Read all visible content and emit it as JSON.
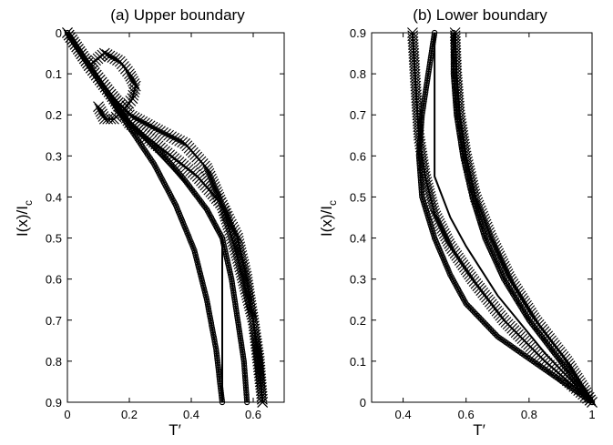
{
  "chart_data": [
    {
      "type": "line",
      "title": "(a) Upper boundary",
      "xlabel": "T′",
      "ylabel": "I(x)/I_c",
      "xlim": [
        0,
        0.7
      ],
      "ylim": [
        0,
        0.9
      ],
      "y_reversed": true,
      "xticks": [
        "0",
        "0.2",
        "0.4",
        "0.6"
      ],
      "yticks": [
        "0",
        "0.1",
        "0.2",
        "0.3",
        "0.4",
        "0.5",
        "0.6",
        "0.7",
        "0.8",
        "0.9"
      ],
      "grid": false,
      "series": [
        {
          "marker": "none",
          "x": [
            0,
            0.07,
            0.14,
            0.2,
            0.3,
            0.4,
            0.45,
            0.5,
            0.5,
            0.5
          ],
          "y": [
            0,
            0.08,
            0.16,
            0.22,
            0.3,
            0.38,
            0.43,
            0.5,
            0.7,
            0.9
          ]
        },
        {
          "marker": "circle",
          "x": [
            0,
            0.07,
            0.14,
            0.2,
            0.3,
            0.38,
            0.45,
            0.5,
            0.53,
            0.55,
            0.57,
            0.58
          ],
          "y": [
            0,
            0.08,
            0.16,
            0.22,
            0.29,
            0.36,
            0.43,
            0.5,
            0.6,
            0.7,
            0.8,
            0.9
          ]
        },
        {
          "marker": "x",
          "x": [
            0,
            0.07,
            0.14,
            0.2,
            0.3,
            0.42,
            0.5,
            0.55,
            0.58,
            0.6,
            0.62,
            0.63
          ],
          "y": [
            0,
            0.08,
            0.15,
            0.22,
            0.28,
            0.35,
            0.42,
            0.5,
            0.6,
            0.7,
            0.8,
            0.9
          ]
        },
        {
          "marker": "circle",
          "x": [
            0,
            0.07,
            0.14,
            0.2,
            0.28,
            0.35,
            0.41,
            0.45,
            0.48,
            0.5
          ],
          "y": [
            0,
            0.08,
            0.16,
            0.23,
            0.32,
            0.42,
            0.53,
            0.65,
            0.77,
            0.9
          ]
        },
        {
          "marker": "x",
          "x": [
            0,
            0.07,
            0.14,
            0.2,
            0.3,
            0.38,
            0.45,
            0.5,
            0.55,
            0.6,
            0.63
          ],
          "y": [
            0,
            0.08,
            0.15,
            0.2,
            0.24,
            0.27,
            0.33,
            0.42,
            0.55,
            0.7,
            0.9
          ]
        },
        {
          "marker": "x",
          "x": [
            0.07,
            0.12,
            0.17,
            0.2,
            0.22,
            0.21,
            0.18,
            0.15,
            0.12,
            0.1
          ],
          "y": [
            0.08,
            0.05,
            0.07,
            0.1,
            0.13,
            0.16,
            0.19,
            0.21,
            0.21,
            0.18
          ]
        }
      ]
    },
    {
      "type": "line",
      "title": "(b) Lower boundary",
      "xlabel": "T′",
      "ylabel": "I(x)/I_c",
      "xlim": [
        0.3,
        1
      ],
      "ylim": [
        0,
        0.9
      ],
      "y_reversed": false,
      "xticks": [
        "0.4",
        "0.6",
        "0.8",
        "1"
      ],
      "yticks": [
        "0",
        "0.1",
        "0.2",
        "0.3",
        "0.4",
        "0.5",
        "0.6",
        "0.7",
        "0.8",
        "0.9"
      ],
      "grid": false,
      "series": [
        {
          "marker": "none",
          "x": [
            1,
            0.85,
            0.7,
            0.6,
            0.55,
            0.5,
            0.5,
            0.5
          ],
          "y": [
            0,
            0.12,
            0.26,
            0.38,
            0.45,
            0.55,
            0.7,
            0.9
          ]
        },
        {
          "marker": "circle",
          "x": [
            1,
            0.85,
            0.7,
            0.6,
            0.55,
            0.5,
            0.46,
            0.45,
            0.46,
            0.48,
            0.5
          ],
          "y": [
            0,
            0.08,
            0.16,
            0.24,
            0.31,
            0.4,
            0.5,
            0.6,
            0.7,
            0.8,
            0.9
          ]
        },
        {
          "marker": "x",
          "x": [
            1,
            0.85,
            0.72,
            0.62,
            0.55,
            0.5,
            0.47,
            0.45,
            0.44,
            0.43
          ],
          "y": [
            0,
            0.1,
            0.2,
            0.3,
            0.38,
            0.46,
            0.55,
            0.65,
            0.77,
            0.9
          ]
        },
        {
          "marker": "circle",
          "x": [
            1,
            0.9,
            0.8,
            0.72,
            0.66,
            0.62,
            0.59,
            0.57,
            0.56,
            0.56
          ],
          "y": [
            0,
            0.1,
            0.2,
            0.3,
            0.4,
            0.5,
            0.6,
            0.7,
            0.8,
            0.9
          ]
        },
        {
          "marker": "x",
          "x": [
            1,
            0.92,
            0.82,
            0.74,
            0.68,
            0.63,
            0.6,
            0.58,
            0.57,
            0.565
          ],
          "y": [
            0,
            0.1,
            0.2,
            0.3,
            0.4,
            0.5,
            0.6,
            0.7,
            0.8,
            0.9
          ]
        }
      ]
    }
  ]
}
